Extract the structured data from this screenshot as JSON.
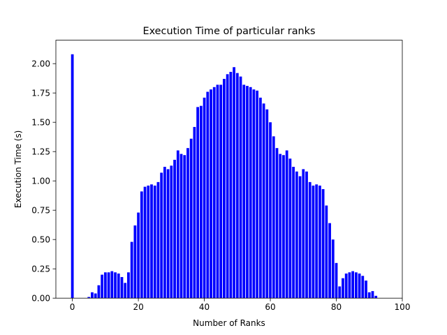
{
  "chart_data": {
    "type": "bar",
    "title": "Execution Time of particular ranks",
    "xlabel": "Number of Ranks",
    "ylabel": "Execution Time (s)",
    "xlim": [
      -5,
      100
    ],
    "ylim": [
      0,
      2.2
    ],
    "xticks": [
      0,
      20,
      40,
      60,
      80,
      100
    ],
    "yticks": [
      0.0,
      0.25,
      0.5,
      0.75,
      1.0,
      1.25,
      1.5,
      1.75,
      2.0
    ],
    "xtick_labels": [
      "0",
      "20",
      "40",
      "60",
      "80",
      "100"
    ],
    "ytick_labels": [
      "0.00",
      "0.25",
      "0.50",
      "0.75",
      "1.00",
      "1.25",
      "1.50",
      "1.75",
      "2.00"
    ],
    "bar_color": "#0000ff",
    "grid": false,
    "x": [
      0,
      1,
      2,
      3,
      4,
      5,
      6,
      7,
      8,
      9,
      10,
      11,
      12,
      13,
      14,
      15,
      16,
      17,
      18,
      19,
      20,
      21,
      22,
      23,
      24,
      25,
      26,
      27,
      28,
      29,
      30,
      31,
      32,
      33,
      34,
      35,
      36,
      37,
      38,
      39,
      40,
      41,
      42,
      43,
      44,
      45,
      46,
      47,
      48,
      49,
      50,
      51,
      52,
      53,
      54,
      55,
      56,
      57,
      58,
      59,
      60,
      61,
      62,
      63,
      64,
      65,
      66,
      67,
      68,
      69,
      70,
      71,
      72,
      73,
      74,
      75,
      76,
      77,
      78,
      79,
      80,
      81,
      82,
      83,
      84,
      85,
      86,
      87,
      88,
      89,
      90,
      91,
      92
    ],
    "values": [
      2.08,
      0,
      0,
      0,
      0,
      0.01,
      0.05,
      0.04,
      0.11,
      0.2,
      0.22,
      0.22,
      0.23,
      0.22,
      0.21,
      0.18,
      0.13,
      0.22,
      0.48,
      0.62,
      0.73,
      0.91,
      0.95,
      0.96,
      0.97,
      0.96,
      0.99,
      1.07,
      1.12,
      1.1,
      1.13,
      1.18,
      1.26,
      1.23,
      1.22,
      1.28,
      1.36,
      1.46,
      1.63,
      1.64,
      1.71,
      1.76,
      1.78,
      1.8,
      1.82,
      1.82,
      1.87,
      1.91,
      1.93,
      1.97,
      1.92,
      1.89,
      1.82,
      1.81,
      1.8,
      1.78,
      1.77,
      1.71,
      1.66,
      1.61,
      1.5,
      1.38,
      1.28,
      1.23,
      1.22,
      1.26,
      1.19,
      1.12,
      1.08,
      1.04,
      1.1,
      1.08,
      0.99,
      0.96,
      0.97,
      0.96,
      0.93,
      0.79,
      0.64,
      0.5,
      0.3,
      0.1,
      0.17,
      0.21,
      0.22,
      0.23,
      0.22,
      0.21,
      0.19,
      0.15,
      0.05,
      0.06,
      0.02
    ]
  }
}
